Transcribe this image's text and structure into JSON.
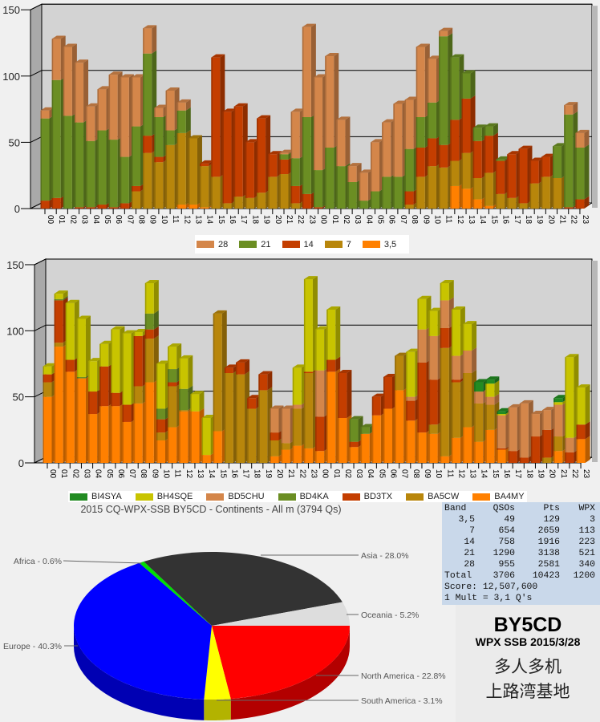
{
  "chart_data": [
    {
      "type": "bar",
      "stacked": true,
      "title": "",
      "xlabel": "",
      "ylabel": "",
      "ylim": [
        0,
        150
      ],
      "yticks": [
        0,
        50,
        100,
        150
      ],
      "categories": [
        "00",
        "01",
        "02",
        "03",
        "04",
        "05",
        "06",
        "07",
        "08",
        "09",
        "10",
        "11",
        "12",
        "13",
        "14",
        "15",
        "16",
        "17",
        "18",
        "19",
        "20",
        "21",
        "22",
        "23",
        "00",
        "01",
        "02",
        "03",
        "04",
        "05",
        "06",
        "07",
        "08",
        "09",
        "10",
        "11",
        "12",
        "13",
        "14",
        "15",
        "16",
        "17",
        "18",
        "19",
        "20",
        "21",
        "22",
        "23"
      ],
      "legend_position": "bottom",
      "series": [
        {
          "name": "3,5",
          "color": "#ff8000",
          "values": [
            0,
            0,
            0,
            0,
            0,
            0,
            0,
            0,
            0,
            0,
            0,
            0,
            3,
            3,
            1,
            0,
            0,
            0,
            0,
            0,
            0,
            0,
            0,
            0,
            0,
            0,
            0,
            0,
            0,
            0,
            0,
            0,
            0,
            0,
            0,
            0,
            17,
            15,
            7,
            2,
            0,
            0,
            0,
            0,
            0,
            0,
            0,
            0
          ]
        },
        {
          "name": "7",
          "color": "#b8860b",
          "values": [
            0,
            0,
            0,
            0,
            0,
            0,
            0,
            0,
            13,
            42,
            35,
            48,
            54,
            50,
            31,
            24,
            4,
            9,
            8,
            12,
            24,
            26,
            4,
            0,
            0,
            0,
            0,
            0,
            0,
            0,
            0,
            0,
            3,
            24,
            32,
            31,
            19,
            27,
            16,
            25,
            11,
            8,
            4,
            19,
            24,
            23,
            0,
            0
          ]
        },
        {
          "name": "14",
          "color": "#c43e00",
          "values": [
            6,
            8,
            0,
            1,
            1,
            3,
            1,
            4,
            4,
            13,
            4,
            0,
            0,
            0,
            2,
            90,
            69,
            68,
            42,
            56,
            17,
            11,
            13,
            11,
            1,
            0,
            0,
            0,
            0,
            0,
            0,
            0,
            10,
            22,
            21,
            17,
            31,
            41,
            28,
            28,
            25,
            33,
            41,
            17,
            15,
            0,
            1,
            7
          ]
        },
        {
          "name": "21",
          "color": "#6b8e23",
          "values": [
            62,
            89,
            70,
            64,
            50,
            56,
            51,
            35,
            45,
            62,
            30,
            11,
            17,
            0,
            0,
            0,
            0,
            0,
            0,
            0,
            0,
            4,
            21,
            58,
            28,
            46,
            32,
            20,
            6,
            13,
            24,
            24,
            32,
            23,
            27,
            82,
            47,
            19,
            10,
            7,
            1,
            0,
            0,
            0,
            0,
            24,
            70,
            39
          ]
        },
        {
          "name": "28",
          "color": "#d4864a",
          "values": [
            6,
            31,
            52,
            45,
            26,
            31,
            49,
            60,
            37,
            19,
            7,
            30,
            6,
            0,
            0,
            0,
            0,
            0,
            0,
            0,
            0,
            1,
            35,
            68,
            70,
            69,
            35,
            12,
            21,
            37,
            41,
            55,
            37,
            53,
            33,
            4,
            0,
            0,
            0,
            0,
            0,
            0,
            0,
            0,
            0,
            0,
            7,
            11
          ]
        }
      ]
    },
    {
      "type": "bar",
      "stacked": true,
      "title": "",
      "xlabel": "",
      "ylabel": "",
      "ylim": [
        0,
        150
      ],
      "yticks": [
        0,
        50,
        100,
        150
      ],
      "categories": [
        "00",
        "01",
        "02",
        "03",
        "04",
        "05",
        "06",
        "07",
        "08",
        "09",
        "10",
        "11",
        "12",
        "13",
        "14",
        "15",
        "16",
        "17",
        "18",
        "19",
        "20",
        "21",
        "22",
        "23",
        "00",
        "01",
        "02",
        "03",
        "04",
        "05",
        "06",
        "07",
        "08",
        "09",
        "10",
        "11",
        "12",
        "13",
        "14",
        "15",
        "16",
        "17",
        "18",
        "19",
        "20",
        "21",
        "22",
        "23"
      ],
      "legend_position": "bottom",
      "series": [
        {
          "name": "BA4MY",
          "color": "#ff8000",
          "values": [
            50,
            88,
            69,
            64,
            37,
            43,
            43,
            31,
            45,
            61,
            17,
            27,
            39,
            39,
            6,
            24,
            0,
            0,
            0,
            0,
            5,
            10,
            13,
            11,
            9,
            69,
            34,
            12,
            22,
            36,
            41,
            55,
            32,
            23,
            22,
            5,
            19,
            27,
            16,
            25,
            10,
            0,
            0,
            0,
            0,
            9,
            0,
            18
          ]
        },
        {
          "name": "BA5CW",
          "color": "#b8860b",
          "values": [
            11,
            3,
            0,
            0,
            0,
            0,
            0,
            0,
            13,
            33,
            6,
            31,
            1,
            0,
            0,
            89,
            68,
            67,
            41,
            55,
            12,
            5,
            28,
            57,
            0,
            0,
            0,
            0,
            0,
            0,
            0,
            26,
            0,
            0,
            7,
            82,
            42,
            41,
            29,
            19,
            0,
            0,
            0,
            0,
            4,
            11,
            0,
            0
          ]
        },
        {
          "name": "BD3TX",
          "color": "#c43e00",
          "values": [
            6,
            32,
            9,
            0,
            17,
            30,
            10,
            13,
            38,
            7,
            10,
            3,
            0,
            0,
            0,
            0,
            4,
            9,
            8,
            12,
            6,
            0,
            0,
            1,
            26,
            9,
            34,
            4,
            0,
            14,
            24,
            0,
            15,
            53,
            34,
            15,
            2,
            0,
            0,
            0,
            1,
            9,
            4,
            20,
            21,
            0,
            8,
            11
          ]
        },
        {
          "name": "BD4KA",
          "color": "#6b8e23",
          "values": [
            0,
            1,
            0,
            1,
            0,
            0,
            0,
            0,
            0,
            12,
            8,
            10,
            16,
            0,
            0,
            0,
            0,
            0,
            0,
            0,
            0,
            0,
            0,
            0,
            0,
            0,
            0,
            17,
            5,
            0,
            0,
            0,
            0,
            0,
            0,
            0,
            0,
            0,
            0,
            0,
            0,
            0,
            0,
            0,
            0,
            0,
            0,
            0
          ]
        },
        {
          "name": "BD5CHU",
          "color": "#d4864a",
          "values": [
            0,
            0,
            0,
            0,
            0,
            0,
            0,
            0,
            0,
            0,
            0,
            0,
            0,
            0,
            0,
            0,
            0,
            0,
            0,
            0,
            18,
            26,
            3,
            0,
            35,
            0,
            0,
            0,
            0,
            0,
            0,
            0,
            3,
            25,
            33,
            21,
            18,
            17,
            9,
            6,
            25,
            33,
            41,
            17,
            15,
            24,
            11,
            0
          ]
        },
        {
          "name": "BH4SQE",
          "color": "#c8c400",
          "values": [
            6,
            4,
            43,
            44,
            23,
            17,
            48,
            54,
            3,
            23,
            34,
            17,
            23,
            13,
            28,
            0,
            0,
            0,
            0,
            0,
            0,
            0,
            28,
            70,
            31,
            38,
            0,
            0,
            0,
            0,
            0,
            0,
            34,
            23,
            19,
            13,
            35,
            20,
            0,
            10,
            1,
            0,
            0,
            0,
            0,
            2,
            61,
            28
          ]
        },
        {
          "name": "BI4SYA",
          "color": "#228b22",
          "values": [
            0,
            0,
            0,
            0,
            0,
            0,
            0,
            0,
            0,
            0,
            0,
            0,
            0,
            0,
            0,
            0,
            0,
            0,
            0,
            0,
            0,
            0,
            0,
            0,
            0,
            0,
            0,
            0,
            0,
            0,
            0,
            0,
            0,
            0,
            0,
            0,
            0,
            0,
            7,
            3,
            2,
            0,
            0,
            0,
            0,
            3,
            0,
            0
          ]
        }
      ]
    },
    {
      "type": "pie",
      "title": "2015 CQ-WPX-SSB BY5CD - Continents - All m (3794 Qs)",
      "slices": [
        {
          "name": "North America",
          "value": 22.8,
          "text": "North America - 22.8%",
          "color": "#ff0000"
        },
        {
          "name": "South America",
          "value": 3.1,
          "text": "South America - 3.1%",
          "color": "#ffff00"
        },
        {
          "name": "Europe",
          "value": 40.3,
          "text": "Europe - 40.3%",
          "color": "#0000ff"
        },
        {
          "name": "Africa",
          "value": 0.6,
          "text": "Africa - 0.6%",
          "color": "#00e000"
        },
        {
          "name": "Asia",
          "value": 28.0,
          "text": "Asia - 28.0%",
          "color": "#333333"
        },
        {
          "name": "Oceania",
          "value": 5.2,
          "text": "Oceania - 5.2%",
          "color": "#dddddd"
        }
      ]
    }
  ],
  "stats": {
    "headers": [
      "Band",
      "QSOs",
      "Pts",
      "WPX"
    ],
    "rows": [
      [
        "3,5",
        "49",
        "129",
        "3"
      ],
      [
        "7",
        "654",
        "2659",
        "113"
      ],
      [
        "14",
        "758",
        "1916",
        "223"
      ],
      [
        "21",
        "1290",
        "3138",
        "521"
      ],
      [
        "28",
        "955",
        "2581",
        "340"
      ],
      [
        "Total",
        "3706",
        "10423",
        "1200"
      ]
    ],
    "score": "Score: 12,507,600",
    "mult": "1 Mult = 3,1 Q's"
  },
  "station": {
    "call": "BY5CD",
    "contest": "WPX SSB 2015/3/28",
    "line1": "多人多机",
    "line2": "上路湾基地"
  }
}
